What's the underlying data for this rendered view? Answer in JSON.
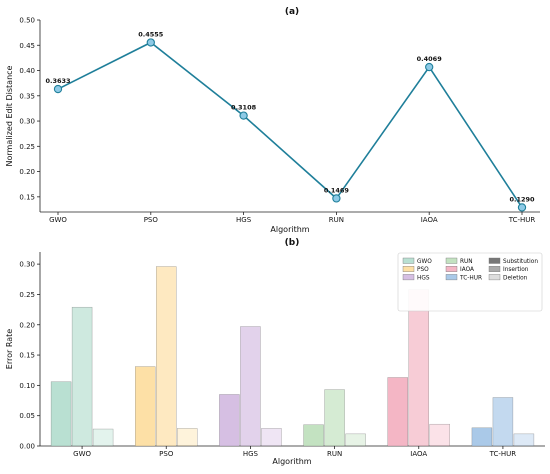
{
  "chart_data": [
    {
      "type": "line",
      "title": "(a)",
      "xlabel": "Algorithm",
      "ylabel": "Normalized Edit Distance",
      "categories": [
        "GWO",
        "PSO",
        "HGS",
        "RUN",
        "IAOA",
        "TC-HUR"
      ],
      "values": [
        0.3633,
        0.4555,
        0.3108,
        0.1469,
        0.4069,
        0.129
      ],
      "data_labels": [
        "0.3633",
        "0.4555",
        "0.3108",
        "0.1469",
        "0.4069",
        "0.1290"
      ],
      "yticks": [
        "0.15",
        "0.20",
        "0.25",
        "0.30",
        "0.35",
        "0.40",
        "0.45",
        "0.50"
      ],
      "ylim": [
        0.12,
        0.5
      ],
      "grid": false,
      "colors": {
        "line": "#1f7f9a",
        "marker_fill": "#8ecae6",
        "marker_edge": "#1f7f9a"
      }
    },
    {
      "type": "bar",
      "title": "(b)",
      "xlabel": "Algorithm",
      "ylabel": "Error Rate",
      "categories": [
        "GWO",
        "PSO",
        "HGS",
        "RUN",
        "IAOA",
        "TC-HUR"
      ],
      "series": [
        {
          "name": "Substitution",
          "values": [
            0.106,
            0.131,
            0.085,
            0.035,
            0.113,
            0.03
          ]
        },
        {
          "name": "Insertion",
          "values": [
            0.229,
            0.296,
            0.197,
            0.093,
            0.258,
            0.08
          ]
        },
        {
          "name": "Deletion",
          "values": [
            0.028,
            0.029,
            0.029,
            0.02,
            0.036,
            0.02
          ]
        }
      ],
      "yticks": [
        "0.00",
        "0.05",
        "0.10",
        "0.15",
        "0.20",
        "0.25",
        "0.30"
      ],
      "ylim": [
        0,
        0.32
      ],
      "grid": false,
      "legend_position": "top-right",
      "legend": {
        "algorithms": [
          "GWO",
          "PSO",
          "HGS",
          "RUN",
          "IAOA",
          "TC-HUR"
        ],
        "types": [
          "Substitution",
          "Insertion",
          "Deletion"
        ]
      },
      "colors": {
        "algorithms": [
          "#b9e0d2",
          "#fde0a6",
          "#d6bfe3",
          "#c3e2c1",
          "#f4b6c5",
          "#aac9e8"
        ],
        "type_swatches": [
          "#777777",
          "#aaaaaa",
          "#dddddd"
        ]
      }
    }
  ]
}
